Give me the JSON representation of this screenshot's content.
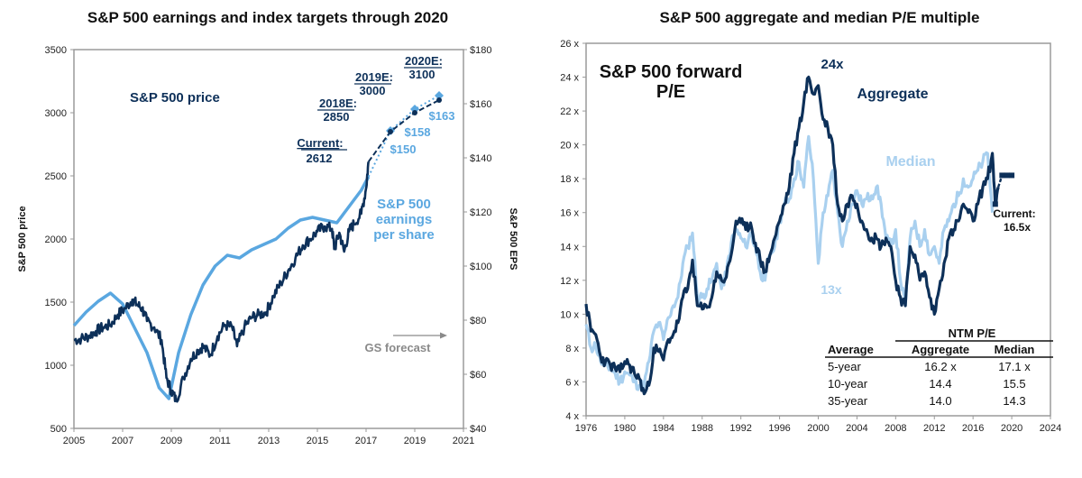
{
  "chart_data": [
    {
      "type": "line",
      "title": "S&P 500 earnings and index targets through 2020",
      "xlabel": "",
      "ylabel": "S&P 500 price",
      "y2label": "S&P 500 EPS",
      "xlim": [
        2005,
        2021
      ],
      "ylim": [
        500,
        3500
      ],
      "y2lim": [
        40,
        180
      ],
      "x_ticks": [
        "2005",
        "2007",
        "2009",
        "2011",
        "2013",
        "2015",
        "2017",
        "2019",
        "2021"
      ],
      "y_ticks": [
        "500",
        "1000",
        "1500",
        "2000",
        "2500",
        "3000",
        "3500"
      ],
      "y2_ticks": [
        "$40",
        "$60",
        "$80",
        "$100",
        "$120",
        "$140",
        "$160",
        "$180"
      ],
      "grid": false,
      "series": [
        {
          "name": "S&P 500 price",
          "axis": "left",
          "color": "#0d3059",
          "x": [
            2005.0,
            2005.3,
            2005.6,
            2005.9,
            2006.2,
            2006.5,
            2006.8,
            2007.1,
            2007.4,
            2007.6,
            2007.8,
            2008.0,
            2008.3,
            2008.6,
            2008.8,
            2009.0,
            2009.2,
            2009.5,
            2009.8,
            2010.1,
            2010.3,
            2010.6,
            2010.9,
            2011.2,
            2011.5,
            2011.7,
            2012.0,
            2012.3,
            2012.6,
            2012.9,
            2013.2,
            2013.5,
            2013.8,
            2014.1,
            2014.4,
            2014.7,
            2015.0,
            2015.3,
            2015.6,
            2015.7,
            2015.9,
            2016.1,
            2016.3,
            2016.5,
            2016.8,
            2017.0,
            2017.1
          ],
          "values": [
            1200,
            1210,
            1230,
            1270,
            1300,
            1320,
            1400,
            1450,
            1520,
            1480,
            1450,
            1350,
            1300,
            1200,
            900,
            800,
            720,
            900,
            1050,
            1120,
            1150,
            1080,
            1230,
            1320,
            1300,
            1150,
            1300,
            1380,
            1400,
            1420,
            1550,
            1650,
            1750,
            1850,
            1950,
            2000,
            2060,
            2100,
            2080,
            1920,
            2050,
            1900,
            2060,
            2120,
            2200,
            2400,
            2612
          ]
        },
        {
          "name": "S&P 500 earnings per share",
          "axis": "right",
          "color": "#5aa7e0",
          "x": [
            2005.0,
            2005.5,
            2006.0,
            2006.5,
            2007.0,
            2007.5,
            2008.0,
            2008.5,
            2008.9,
            2009.3,
            2009.8,
            2010.3,
            2010.8,
            2011.3,
            2011.8,
            2012.3,
            2012.8,
            2013.3,
            2013.8,
            2014.3,
            2014.8,
            2015.3,
            2015.8,
            2016.3,
            2016.8,
            2017.1
          ],
          "values": [
            78,
            83,
            87,
            90,
            86,
            77,
            68,
            55,
            51,
            68,
            82,
            93,
            100,
            104,
            103,
            106,
            108,
            110,
            114,
            117,
            118,
            117,
            116,
            122,
            128,
            133
          ]
        },
        {
          "name": "S&P 500 index target (GS forecast)",
          "axis": "left",
          "color": "#0d3059",
          "style": "dashed",
          "x": [
            2017.1,
            2018.0,
            2019.0,
            2020.0
          ],
          "values": [
            2612,
            2850,
            3000,
            3100
          ]
        },
        {
          "name": "S&P 500 EPS forecast (GS forecast)",
          "axis": "right",
          "color": "#5aa7e0",
          "style": "dotted",
          "x": [
            2017.1,
            2018.0,
            2019.0,
            2020.0
          ],
          "values": [
            133,
            150,
            158,
            163
          ]
        }
      ],
      "annotations": {
        "price_label": "S&P 500 price",
        "eps_label_lines": [
          "S&P 500",
          "earnings",
          "per share"
        ],
        "current_label": "Current",
        "current_value": "2612",
        "target_2018_label": "2018E",
        "target_2018_value": "2850",
        "target_2019_label": "2019E",
        "target_2019_value": "3000",
        "target_2020_label": "2020E",
        "target_2020_value": "3100",
        "eps_2018": "$150",
        "eps_2019": "$158",
        "eps_2020": "$163",
        "forecast_label": "GS forecast"
      }
    },
    {
      "type": "line",
      "title": "S&P 500 aggregate and median P/E multiple",
      "subtitle_lines": [
        "S&P 500 forward",
        "P/E"
      ],
      "xlabel": "",
      "ylabel": "",
      "xlim": [
        1976,
        2024
      ],
      "ylim": [
        4,
        26
      ],
      "x_ticks": [
        "1976",
        "1980",
        "1984",
        "1988",
        "1992",
        "1996",
        "2000",
        "2004",
        "2008",
        "2012",
        "2016",
        "2020",
        "2024"
      ],
      "y_ticks": [
        "4 x",
        "6 x",
        "8 x",
        "10 x",
        "12 x",
        "14 x",
        "16 x",
        "18 x",
        "20 x",
        "22 x",
        "24 x",
        "26 x"
      ],
      "grid": false,
      "series": [
        {
          "name": "Aggregate",
          "color": "#0d3059",
          "x": [
            1976.0,
            1976.5,
            1977.0,
            1977.5,
            1978.0,
            1978.5,
            1979.0,
            1979.5,
            1980.0,
            1980.5,
            1981.0,
            1981.5,
            1982.0,
            1982.5,
            1983.0,
            1983.5,
            1984.0,
            1984.5,
            1985.0,
            1985.5,
            1986.0,
            1986.5,
            1987.0,
            1987.5,
            1988.0,
            1988.5,
            1989.0,
            1989.5,
            1990.0,
            1990.5,
            1991.0,
            1991.5,
            1992.0,
            1992.5,
            1993.0,
            1993.5,
            1994.0,
            1994.5,
            1995.0,
            1995.5,
            1996.0,
            1996.5,
            1997.0,
            1997.5,
            1998.0,
            1998.5,
            1999.0,
            1999.5,
            2000.0,
            2000.5,
            2001.0,
            2001.5,
            2002.0,
            2002.5,
            2003.0,
            2003.5,
            2004.0,
            2004.5,
            2005.0,
            2005.5,
            2006.0,
            2006.5,
            2007.0,
            2007.5,
            2008.0,
            2008.5,
            2009.0,
            2009.5,
            2010.0,
            2010.5,
            2011.0,
            2011.5,
            2012.0,
            2012.5,
            2013.0,
            2013.5,
            2014.0,
            2014.5,
            2015.0,
            2015.5,
            2016.0,
            2016.5,
            2017.0,
            2017.5,
            2018.0,
            2018.3,
            2018.6,
            2019.0,
            2019.5,
            2020.0
          ],
          "values": [
            10.6,
            9.0,
            8.8,
            7.5,
            7.2,
            7.0,
            6.8,
            6.6,
            7.2,
            7.0,
            6.5,
            6.2,
            5.3,
            5.8,
            8.0,
            7.8,
            7.3,
            8.5,
            8.8,
            9.5,
            11.0,
            11.5,
            13.2,
            10.5,
            10.3,
            10.4,
            11.0,
            12.5,
            12.0,
            12.2,
            13.5,
            15.5,
            15.4,
            15.0,
            15.4,
            14.2,
            13.2,
            12.5,
            13.5,
            14.5,
            15.5,
            16.5,
            17.5,
            19.5,
            21.0,
            22.5,
            24.0,
            23.0,
            23.5,
            21.5,
            21.0,
            20.0,
            16.5,
            15.5,
            16.5,
            17.0,
            16.5,
            15.5,
            15.0,
            14.5,
            14.5,
            14.0,
            14.5,
            14.0,
            12.0,
            11.0,
            10.5,
            14.0,
            13.5,
            12.0,
            12.5,
            11.0,
            10.0,
            11.5,
            13.0,
            14.5,
            15.0,
            15.5,
            16.5,
            16.0,
            15.5,
            16.5,
            17.5,
            18.0,
            19.5,
            16.5,
            17.5,
            18.2,
            18.2,
            18.2
          ]
        },
        {
          "name": "Median",
          "color": "#a9d0ef",
          "x": [
            1976.0,
            1976.5,
            1977.0,
            1977.5,
            1978.0,
            1978.5,
            1979.0,
            1979.5,
            1980.0,
            1980.5,
            1981.0,
            1981.5,
            1982.0,
            1982.5,
            1983.0,
            1983.5,
            1984.0,
            1984.5,
            1985.0,
            1985.5,
            1986.0,
            1986.5,
            1987.0,
            1987.5,
            1988.0,
            1988.5,
            1989.0,
            1989.5,
            1990.0,
            1990.5,
            1991.0,
            1991.5,
            1992.0,
            1992.5,
            1993.0,
            1993.5,
            1994.0,
            1994.5,
            1995.0,
            1995.5,
            1996.0,
            1996.5,
            1997.0,
            1997.5,
            1998.0,
            1998.5,
            1999.0,
            1999.5,
            2000.0,
            2000.5,
            2001.0,
            2001.5,
            2002.0,
            2002.5,
            2003.0,
            2003.5,
            2004.0,
            2004.5,
            2005.0,
            2005.5,
            2006.0,
            2006.5,
            2007.0,
            2007.5,
            2008.0,
            2008.5,
            2009.0,
            2009.5,
            2010.0,
            2010.5,
            2011.0,
            2011.5,
            2012.0,
            2012.5,
            2013.0,
            2013.5,
            2014.0,
            2014.5,
            2015.0,
            2015.5,
            2016.0,
            2016.5,
            2017.0,
            2017.5,
            2018.0
          ],
          "values": [
            9.4,
            8.0,
            8.2,
            7.2,
            7.0,
            6.8,
            6.5,
            6.0,
            6.6,
            6.4,
            6.0,
            5.8,
            5.8,
            7.2,
            9.0,
            9.5,
            8.5,
            9.8,
            10.5,
            11.0,
            13.0,
            14.0,
            14.8,
            11.0,
            11.0,
            11.5,
            12.0,
            13.0,
            11.5,
            12.5,
            14.2,
            15.0,
            14.5,
            14.0,
            14.8,
            14.0,
            12.5,
            12.0,
            13.5,
            14.0,
            15.5,
            16.5,
            16.8,
            18.0,
            19.0,
            17.5,
            20.5,
            18.0,
            13.0,
            16.0,
            17.0,
            18.5,
            16.0,
            14.0,
            15.5,
            16.5,
            17.3,
            16.5,
            16.8,
            17.0,
            17.5,
            16.5,
            14.5,
            14.0,
            15.0,
            12.0,
            10.5,
            14.5,
            15.5,
            14.0,
            15.0,
            13.5,
            14.0,
            13.0,
            15.0,
            15.5,
            16.5,
            17.0,
            18.0,
            17.5,
            18.0,
            18.5,
            19.0,
            19.5,
            16.0
          ]
        }
      ],
      "annotations": {
        "peak_label": "24x",
        "aggregate_label": "Aggregate",
        "median_label": "Median",
        "trough_label": "13x",
        "current_label": "Current:",
        "current_value": "16.5x"
      },
      "table": {
        "group_header": "NTM P/E",
        "columns": [
          "Average",
          "Aggregate",
          "Median"
        ],
        "rows": [
          [
            "5-year",
            "16.2 x",
            "17.1 x"
          ],
          [
            "10-year",
            "14.4",
            "15.5"
          ],
          [
            "35-year",
            "14.0",
            "14.3"
          ]
        ]
      }
    }
  ]
}
